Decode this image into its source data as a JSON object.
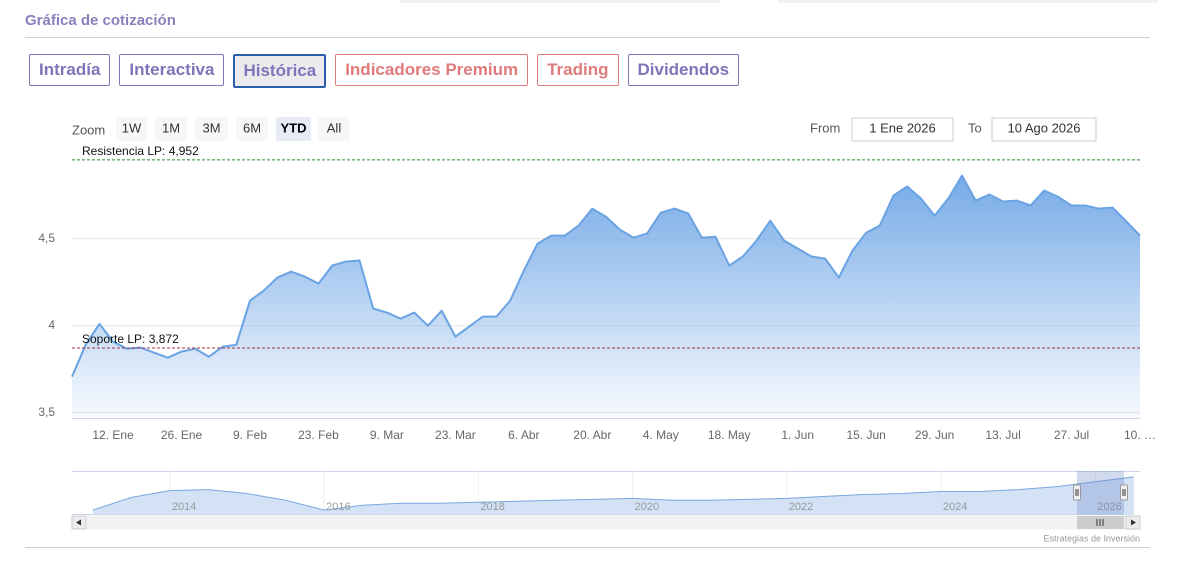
{
  "header": {
    "title": "Gráfica de cotización"
  },
  "tabs": [
    {
      "label": "Intradía",
      "color": "#8174b9"
    },
    {
      "label": "Interactiva",
      "color": "#8174b9"
    },
    {
      "label": "Histórica",
      "color": "#8174b9",
      "active": true
    },
    {
      "label": "Indicadores Premium",
      "color": "#e07b7b"
    },
    {
      "label": "Trading",
      "color": "#e07b7b"
    },
    {
      "label": "Dividendos",
      "color": "#8174b9"
    }
  ],
  "chart_data": {
    "type": "area",
    "range_selector": {
      "label": "Zoom",
      "buttons": [
        "1W",
        "1M",
        "3M",
        "6M",
        "YTD",
        "All"
      ],
      "selected": 4,
      "from_label": "From",
      "from": "1 Ene 2026",
      "to_label": "To",
      "to": "10 Ago 2026"
    },
    "categories": [
      null,
      null,
      null,
      "12. Ene",
      null,
      null,
      null,
      null,
      "26. Ene",
      null,
      null,
      null,
      null,
      "9. Feb",
      null,
      null,
      null,
      null,
      "23. Feb",
      null,
      null,
      null,
      null,
      "9. Mar",
      null,
      null,
      null,
      null,
      "23. Mar",
      null,
      null,
      null,
      null,
      "6. Abr",
      null,
      null,
      null,
      null,
      "20. Abr",
      null,
      null,
      null,
      null,
      "4. May",
      null,
      null,
      null,
      null,
      "18. May",
      null,
      null,
      null,
      null,
      "1. Jun",
      null,
      null,
      null,
      null,
      "15. Jun",
      null,
      null,
      null,
      null,
      "29. Jun",
      null,
      null,
      null,
      null,
      "13. Jul",
      null,
      null,
      null,
      null,
      "27. Jul",
      null,
      null,
      null,
      null,
      "10. …"
    ],
    "values": [
      3.707,
      3.891,
      4.01,
      3.908,
      3.868,
      3.874,
      3.845,
      3.816,
      3.851,
      3.868,
      3.822,
      3.879,
      3.891,
      4.144,
      4.201,
      4.276,
      4.31,
      4.282,
      4.241,
      4.345,
      4.368,
      4.374,
      4.098,
      4.075,
      4.04,
      4.075,
      4.0,
      4.086,
      3.937,
      3.994,
      4.052,
      4.052,
      4.144,
      4.316,
      4.471,
      4.517,
      4.517,
      4.575,
      4.672,
      4.626,
      4.552,
      4.506,
      4.529,
      4.649,
      4.672,
      4.644,
      4.506,
      4.511,
      4.345,
      4.397,
      4.489,
      4.603,
      4.489,
      4.443,
      4.397,
      4.385,
      4.276,
      4.431,
      4.534,
      4.575,
      4.747,
      4.799,
      4.73,
      4.632,
      4.73,
      4.862,
      4.718,
      4.753,
      4.713,
      4.718,
      4.69,
      4.776,
      4.741,
      4.69,
      4.69,
      4.672,
      4.678,
      4.598,
      4.517
    ],
    "color": "#6aa3e3",
    "ylim": [
      3.47,
      4.98
    ],
    "yticks": [
      {
        "value": 3.5,
        "label": "3,5"
      },
      4,
      {
        "value": 4.5,
        "label": "4,5"
      }
    ],
    "grid": true,
    "plot_lines": [
      {
        "label": "Resistencia LP: 4,952",
        "value": 4.952,
        "color": "#2e8b2e"
      },
      {
        "label": "Soporte LP: 3,872",
        "value": 3.872,
        "color": "#a0304a"
      }
    ],
    "navigator": {
      "x": [
        2013,
        2013.5,
        2014,
        2014.5,
        2015,
        2015.5,
        2016,
        2016.5,
        2017,
        2017.5,
        2018,
        2018.5,
        2019,
        2019.5,
        2020,
        2020.5,
        2021,
        2021.5,
        2022,
        2022.5,
        2023,
        2023.5,
        2024,
        2024.5,
        2025,
        2025.5,
        2026,
        2026.5
      ],
      "values": [
        2.39,
        3.4,
        3.94,
        4.02,
        3.71,
        3.17,
        2.39,
        2.78,
        2.93,
        2.93,
        3.01,
        3.09,
        3.17,
        3.24,
        3.32,
        3.17,
        3.17,
        3.24,
        3.32,
        3.48,
        3.63,
        3.71,
        3.87,
        3.87,
        4.02,
        4.26,
        4.64,
        5.03
      ],
      "xlim": [
        2012.73,
        2026.58
      ],
      "xticks": [
        2014,
        2016,
        2018,
        2020,
        2022,
        2024,
        2026
      ],
      "ylim": [
        2,
        5.5
      ]
    },
    "credits": "Estrategias de Inversión"
  }
}
